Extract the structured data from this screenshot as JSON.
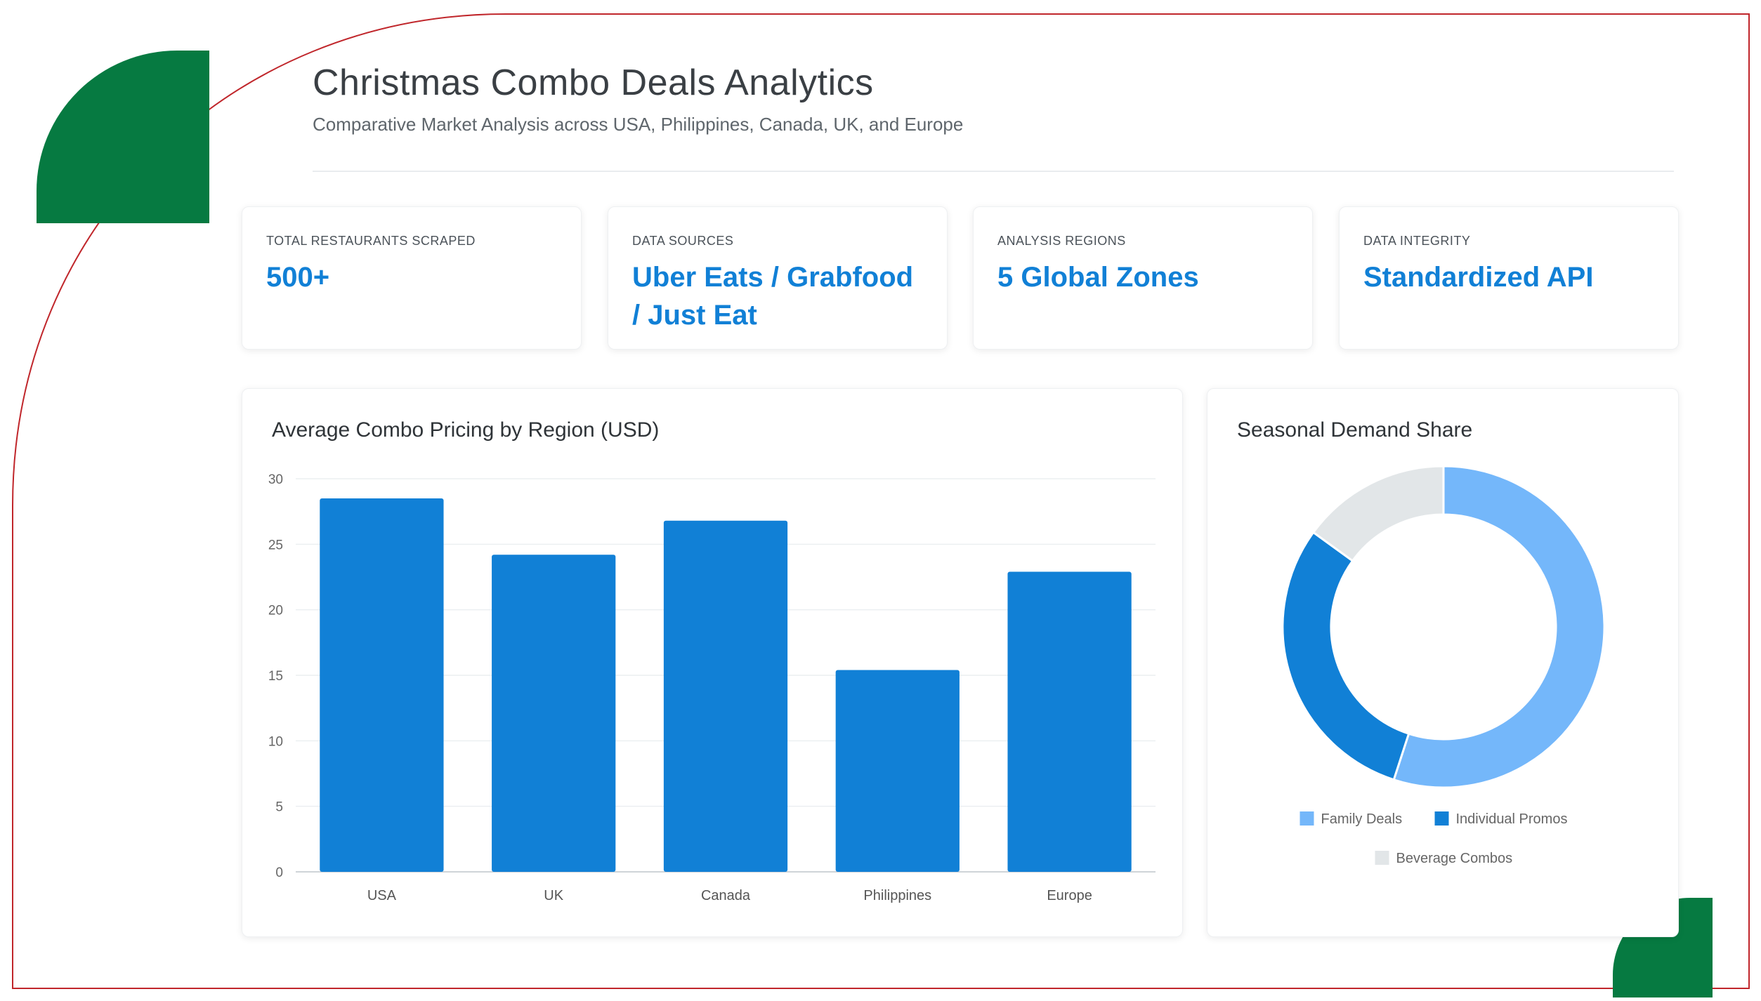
{
  "header": {
    "title": "Christmas Combo Deals Analytics",
    "subtitle": "Comparative Market Analysis across USA, Philippines, Canada, UK, and Europe"
  },
  "stats": [
    {
      "label": "TOTAL RESTAURANTS SCRAPED",
      "value": "500+"
    },
    {
      "label": "DATA SOURCES",
      "value": "Uber Eats / Grabfood / Just Eat"
    },
    {
      "label": "ANALYSIS REGIONS",
      "value": "5 Global Zones"
    },
    {
      "label": "DATA INTEGRITY",
      "value": "Standardized API"
    }
  ],
  "colors": {
    "brand_green": "#067a41",
    "frame_red": "#c0262b",
    "accent_blue": "#1180d6",
    "light_blue": "#74b7fa",
    "light_gray": "#e2e6e8"
  },
  "chart_data": [
    {
      "type": "bar",
      "title": "Average Combo Pricing by Region (USD)",
      "categories": [
        "USA",
        "UK",
        "Canada",
        "Philippines",
        "Europe"
      ],
      "values": [
        28.5,
        24.2,
        26.8,
        15.4,
        22.9
      ],
      "ylim": [
        0,
        30
      ],
      "yticks": [
        0,
        5,
        10,
        15,
        20,
        25,
        30
      ],
      "grid": true,
      "color": "#1180d6"
    },
    {
      "type": "pie",
      "title": "Seasonal Demand Share",
      "labels": [
        "Family Deals",
        "Individual Promos",
        "Beverage Combos"
      ],
      "values": [
        55,
        30,
        15
      ],
      "colors": [
        "#74b7fa",
        "#1180d6",
        "#e2e6e8"
      ],
      "legend": "bottom"
    }
  ]
}
